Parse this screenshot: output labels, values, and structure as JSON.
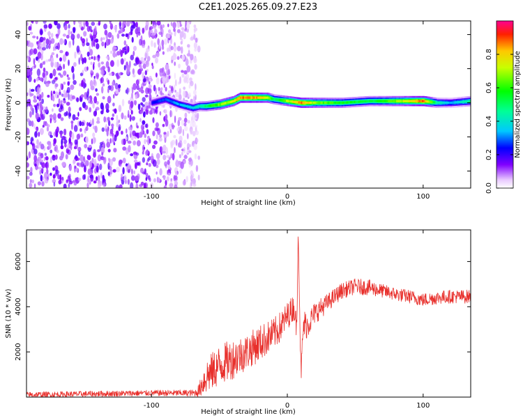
{
  "title": "C2E1.2025.265.09.27.E23",
  "colors": {
    "snr_line": "#e8302c",
    "frame": "#000000",
    "background": "#ffffff"
  },
  "chart_data": [
    {
      "type": "heatmap",
      "name": "spectrogram",
      "title": "C2E1.2025.265.09.27.E23",
      "xlabel": "Height of straight line (km)",
      "ylabel": "Frequency (Hz)",
      "xlim": [
        -192,
        135
      ],
      "ylim": [
        -50,
        48
      ],
      "xticks": [
        -100,
        0,
        100
      ],
      "xtick_labels": [
        "-100",
        "0",
        "100"
      ],
      "yticks": [
        -40,
        -20,
        0,
        20,
        40
      ],
      "ytick_labels": [
        "-40",
        "-20",
        "0",
        "20",
        "40"
      ],
      "noise_region_x": [
        -192,
        -65
      ],
      "signal_track": {
        "x": [
          -100,
          -90,
          -80,
          -70,
          -65,
          -60,
          -50,
          -40,
          -35,
          -25,
          -15,
          -10,
          0,
          10,
          20,
          40,
          60,
          80,
          100,
          110,
          120,
          135
        ],
        "freq": [
          0,
          2,
          -1,
          -3,
          -2,
          -2,
          -1,
          1,
          3,
          3,
          3,
          2,
          1,
          0,
          0,
          0,
          1,
          1,
          1,
          0,
          0,
          1
        ],
        "amplitude": [
          0.25,
          0.3,
          0.35,
          0.4,
          0.45,
          0.55,
          0.7,
          0.8,
          0.95,
          0.9,
          0.8,
          0.5,
          0.75,
          0.95,
          0.7,
          0.6,
          0.55,
          0.7,
          0.95,
          0.45,
          0.35,
          0.5
        ]
      },
      "colorbar": {
        "label": "Normalized spectral amplitude",
        "range": [
          0,
          1
        ],
        "ticks": [
          0.0,
          0.2,
          0.4,
          0.6,
          0.8
        ],
        "tick_labels": [
          "0.0",
          "0.2",
          "0.4",
          "0.6",
          "0.8"
        ]
      }
    },
    {
      "type": "line",
      "name": "snr",
      "xlabel": "Height of straight line (km)",
      "ylabel": "SNR (10 * v/v)",
      "xlim": [
        -192,
        135
      ],
      "ylim": [
        0,
        7400
      ],
      "xticks": [
        -100,
        0,
        100
      ],
      "xtick_labels": [
        "-100",
        "0",
        "100"
      ],
      "yticks": [
        2000,
        4000,
        6000
      ],
      "ytick_labels": [
        "2000",
        "4000",
        "6000"
      ],
      "envelope": {
        "x": [
          -192,
          -100,
          -68,
          -65,
          -60,
          -50,
          -40,
          -30,
          -20,
          -10,
          -5,
          0,
          5,
          7,
          8,
          10,
          12,
          15,
          20,
          30,
          40,
          50,
          60,
          70,
          80,
          90,
          100,
          110,
          120,
          135
        ],
        "mean": [
          100,
          180,
          180,
          300,
          900,
          1400,
          1700,
          2000,
          2400,
          2800,
          3100,
          3600,
          4000,
          3000,
          7400,
          1000,
          3200,
          3200,
          3700,
          4200,
          4700,
          4900,
          4850,
          4700,
          4550,
          4450,
          4300,
          4400,
          4450,
          4450
        ],
        "spread": [
          130,
          130,
          150,
          300,
          800,
          900,
          900,
          800,
          800,
          700,
          700,
          600,
          600,
          500,
          0,
          600,
          700,
          600,
          500,
          400,
          350,
          350,
          350,
          300,
          300,
          300,
          300,
          300,
          300,
          300
        ]
      }
    }
  ]
}
